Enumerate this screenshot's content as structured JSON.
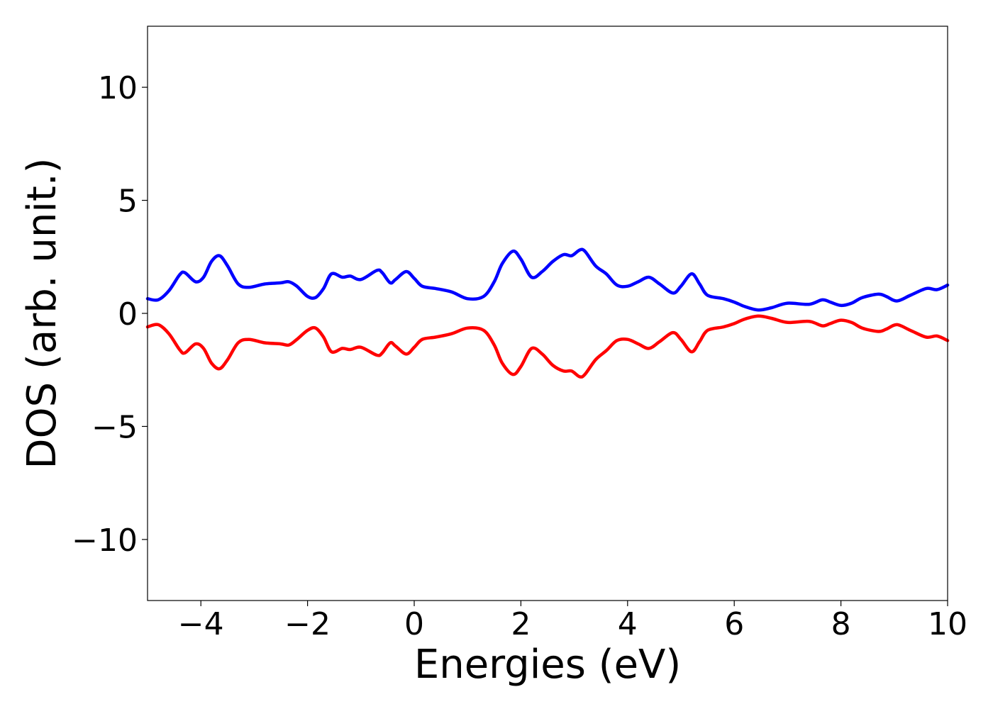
{
  "chart_data": {
    "type": "line",
    "title": "",
    "xlabel": "Energies (eV)",
    "ylabel": "DOS (arb. unit.)",
    "xlim": [
      -5,
      10
    ],
    "ylim": [
      -12.7,
      12.7
    ],
    "grid": false,
    "x_ticks": [
      -4,
      -2,
      0,
      2,
      4,
      6,
      8,
      10
    ],
    "x_tick_labels": [
      "−4",
      "−2",
      "0",
      "2",
      "4",
      "6",
      "8",
      "10"
    ],
    "y_ticks": [
      -10,
      -5,
      0,
      5,
      10
    ],
    "y_tick_labels": [
      "−10",
      "−5",
      "0",
      "5",
      "10"
    ],
    "series": [
      {
        "color": "#0000ff",
        "points": [
          [
            -5.0,
            0.65
          ],
          [
            -4.8,
            0.6
          ],
          [
            -4.6,
            1.0
          ],
          [
            -4.4,
            1.7
          ],
          [
            -4.3,
            1.8
          ],
          [
            -4.1,
            1.4
          ],
          [
            -3.95,
            1.6
          ],
          [
            -3.8,
            2.3
          ],
          [
            -3.65,
            2.55
          ],
          [
            -3.5,
            2.1
          ],
          [
            -3.3,
            1.3
          ],
          [
            -3.1,
            1.15
          ],
          [
            -2.8,
            1.3
          ],
          [
            -2.5,
            1.35
          ],
          [
            -2.35,
            1.4
          ],
          [
            -2.2,
            1.2
          ],
          [
            -2.0,
            0.75
          ],
          [
            -1.85,
            0.7
          ],
          [
            -1.7,
            1.1
          ],
          [
            -1.55,
            1.75
          ],
          [
            -1.35,
            1.6
          ],
          [
            -1.2,
            1.65
          ],
          [
            -1.0,
            1.5
          ],
          [
            -0.7,
            1.9
          ],
          [
            -0.6,
            1.8
          ],
          [
            -0.45,
            1.35
          ],
          [
            -0.35,
            1.5
          ],
          [
            -0.15,
            1.85
          ],
          [
            0.0,
            1.55
          ],
          [
            0.15,
            1.2
          ],
          [
            0.4,
            1.1
          ],
          [
            0.7,
            0.95
          ],
          [
            1.0,
            0.65
          ],
          [
            1.3,
            0.75
          ],
          [
            1.5,
            1.4
          ],
          [
            1.65,
            2.2
          ],
          [
            1.85,
            2.75
          ],
          [
            2.0,
            2.4
          ],
          [
            2.2,
            1.6
          ],
          [
            2.4,
            1.85
          ],
          [
            2.6,
            2.3
          ],
          [
            2.8,
            2.6
          ],
          [
            2.95,
            2.55
          ],
          [
            3.1,
            2.8
          ],
          [
            3.2,
            2.75
          ],
          [
            3.4,
            2.1
          ],
          [
            3.6,
            1.75
          ],
          [
            3.8,
            1.25
          ],
          [
            4.0,
            1.2
          ],
          [
            4.2,
            1.4
          ],
          [
            4.4,
            1.6
          ],
          [
            4.6,
            1.3
          ],
          [
            4.85,
            0.9
          ],
          [
            5.0,
            1.2
          ],
          [
            5.2,
            1.75
          ],
          [
            5.35,
            1.3
          ],
          [
            5.5,
            0.8
          ],
          [
            5.8,
            0.65
          ],
          [
            6.0,
            0.5
          ],
          [
            6.2,
            0.3
          ],
          [
            6.45,
            0.15
          ],
          [
            6.7,
            0.25
          ],
          [
            7.0,
            0.45
          ],
          [
            7.4,
            0.4
          ],
          [
            7.65,
            0.6
          ],
          [
            7.8,
            0.5
          ],
          [
            8.0,
            0.35
          ],
          [
            8.2,
            0.45
          ],
          [
            8.4,
            0.7
          ],
          [
            8.7,
            0.85
          ],
          [
            8.85,
            0.75
          ],
          [
            9.05,
            0.55
          ],
          [
            9.3,
            0.8
          ],
          [
            9.6,
            1.1
          ],
          [
            9.8,
            1.05
          ],
          [
            10.0,
            1.25
          ]
        ]
      },
      {
        "color": "#ff0000",
        "points": [
          [
            -5.0,
            -0.6
          ],
          [
            -4.8,
            -0.5
          ],
          [
            -4.6,
            -0.9
          ],
          [
            -4.4,
            -1.6
          ],
          [
            -4.3,
            -1.75
          ],
          [
            -4.1,
            -1.35
          ],
          [
            -3.95,
            -1.55
          ],
          [
            -3.8,
            -2.2
          ],
          [
            -3.65,
            -2.45
          ],
          [
            -3.5,
            -2.05
          ],
          [
            -3.3,
            -1.3
          ],
          [
            -3.1,
            -1.15
          ],
          [
            -2.8,
            -1.3
          ],
          [
            -2.5,
            -1.35
          ],
          [
            -2.35,
            -1.4
          ],
          [
            -2.2,
            -1.15
          ],
          [
            -2.0,
            -0.75
          ],
          [
            -1.85,
            -0.65
          ],
          [
            -1.7,
            -1.05
          ],
          [
            -1.55,
            -1.7
          ],
          [
            -1.35,
            -1.55
          ],
          [
            -1.2,
            -1.6
          ],
          [
            -1.0,
            -1.5
          ],
          [
            -0.7,
            -1.85
          ],
          [
            -0.6,
            -1.75
          ],
          [
            -0.45,
            -1.3
          ],
          [
            -0.35,
            -1.45
          ],
          [
            -0.15,
            -1.8
          ],
          [
            0.0,
            -1.5
          ],
          [
            0.15,
            -1.15
          ],
          [
            0.4,
            -1.05
          ],
          [
            0.7,
            -0.9
          ],
          [
            1.0,
            -0.65
          ],
          [
            1.3,
            -0.75
          ],
          [
            1.5,
            -1.4
          ],
          [
            1.65,
            -2.2
          ],
          [
            1.85,
            -2.7
          ],
          [
            2.0,
            -2.35
          ],
          [
            2.2,
            -1.55
          ],
          [
            2.4,
            -1.8
          ],
          [
            2.6,
            -2.3
          ],
          [
            2.8,
            -2.55
          ],
          [
            2.95,
            -2.55
          ],
          [
            3.1,
            -2.8
          ],
          [
            3.2,
            -2.7
          ],
          [
            3.4,
            -2.05
          ],
          [
            3.6,
            -1.65
          ],
          [
            3.8,
            -1.2
          ],
          [
            4.0,
            -1.15
          ],
          [
            4.2,
            -1.35
          ],
          [
            4.4,
            -1.55
          ],
          [
            4.6,
            -1.25
          ],
          [
            4.85,
            -0.85
          ],
          [
            5.0,
            -1.15
          ],
          [
            5.2,
            -1.7
          ],
          [
            5.35,
            -1.25
          ],
          [
            5.5,
            -0.75
          ],
          [
            5.8,
            -0.6
          ],
          [
            6.0,
            -0.45
          ],
          [
            6.2,
            -0.25
          ],
          [
            6.45,
            -0.12
          ],
          [
            6.7,
            -0.22
          ],
          [
            7.0,
            -0.4
          ],
          [
            7.4,
            -0.35
          ],
          [
            7.65,
            -0.55
          ],
          [
            7.8,
            -0.45
          ],
          [
            8.0,
            -0.3
          ],
          [
            8.2,
            -0.4
          ],
          [
            8.4,
            -0.65
          ],
          [
            8.7,
            -0.8
          ],
          [
            8.85,
            -0.7
          ],
          [
            9.05,
            -0.5
          ],
          [
            9.3,
            -0.75
          ],
          [
            9.6,
            -1.05
          ],
          [
            9.8,
            -1.0
          ],
          [
            10.0,
            -1.2
          ]
        ]
      }
    ]
  }
}
